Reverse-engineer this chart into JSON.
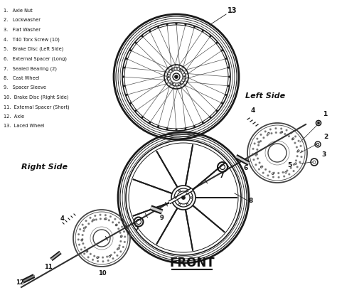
{
  "bg_color": "#ffffff",
  "title": "FRONT",
  "left_side_label": "Left Side",
  "right_side_label": "Right Side",
  "parts_list": [
    "1.   Axle Nut",
    "2.   Lockwasher",
    "3.   Flat Washer",
    "4.   T40 Torx Screw (10)",
    "5.   Brake Disc (Left Side)",
    "6.   External Spacer (Long)",
    "7.   Sealed Bearing (2)",
    "8.   Cast Wheel",
    "9.   Spacer Sleeve",
    "10.  Brake Disc (Right Side)",
    "11.  External Spacer (Short)",
    "12.  Axle",
    "13.  Laced Wheel"
  ],
  "line_color": "#1a1a1a",
  "text_color": "#111111",
  "dark_gray": "#444444"
}
